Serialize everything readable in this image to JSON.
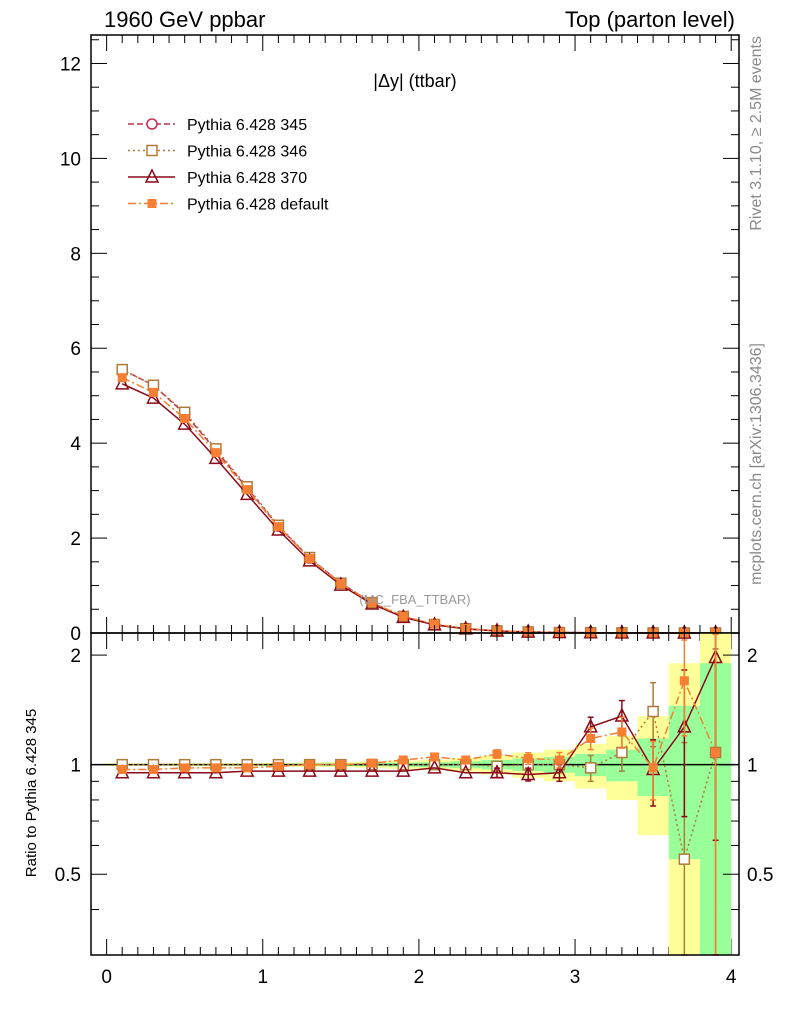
{
  "header": {
    "left_title": "1960 GeV ppbar",
    "right_title": "Top (parton level)"
  },
  "side_labels": {
    "rivet": "Rivet 3.1.10, ≥ 2.5M events",
    "mcplots": "mcplots.cern.ch [arXiv:1306.3436]"
  },
  "chart_data": [
    {
      "type": "line",
      "title": "|Δy| (ttbar)",
      "watermark": "(MC_FBA_TTBAR)",
      "xlabel": "",
      "ylabel": "",
      "xlim": [
        -0.1,
        4.05
      ],
      "ylim": [
        0,
        12.6
      ],
      "ytick_labels": [
        "0",
        "2",
        "4",
        "6",
        "8",
        "10",
        "12"
      ],
      "legend": "top-left",
      "x": [
        0.1,
        0.3,
        0.5,
        0.7,
        0.9,
        1.1,
        1.3,
        1.5,
        1.7,
        1.9,
        2.1,
        2.3,
        2.5,
        2.7,
        2.9,
        3.1,
        3.3,
        3.5,
        3.7,
        3.9
      ],
      "series": [
        {
          "name": "Pythia 6.428 345",
          "color": "#c0304a",
          "marker": "circle",
          "values": [
            5.55,
            5.22,
            4.62,
            3.85,
            3.05,
            2.25,
            1.58,
            1.05,
            0.63,
            0.34,
            0.18,
            0.09,
            0.045,
            0.022,
            0.01,
            0.006,
            0.003,
            0.0015,
            0.0008,
            0.0004
          ]
        },
        {
          "name": "Pythia 6.428 346",
          "color": "#b07a3a",
          "marker": "open-square",
          "values": [
            5.55,
            5.22,
            4.65,
            3.88,
            3.08,
            2.27,
            1.59,
            1.05,
            0.64,
            0.35,
            0.18,
            0.09,
            0.045,
            0.022,
            0.01,
            0.006,
            0.003,
            0.0015,
            0.0008,
            0.0004
          ]
        },
        {
          "name": "Pythia 6.428 370",
          "color": "#8b0a1a",
          "marker": "open-triangle",
          "values": [
            5.25,
            4.95,
            4.4,
            3.68,
            2.92,
            2.17,
            1.52,
            1.01,
            0.61,
            0.33,
            0.17,
            0.087,
            0.043,
            0.021,
            0.01,
            0.006,
            0.003,
            0.0015,
            0.0008,
            0.0004
          ]
        },
        {
          "name": "Pythia 6.428 default",
          "color": "#f77f33",
          "marker": "filled-square",
          "values": [
            5.38,
            5.07,
            4.52,
            3.8,
            3.02,
            2.24,
            1.57,
            1.04,
            0.64,
            0.35,
            0.19,
            0.095,
            0.048,
            0.023,
            0.01,
            0.006,
            0.003,
            0.0015,
            0.0008,
            0.0004
          ]
        }
      ]
    },
    {
      "type": "line",
      "ylabel": "Ratio to Pythia 6.428 345",
      "xlim": [
        -0.1,
        4.05
      ],
      "ylim": [
        0.3,
        2.3
      ],
      "xtick_labels": [
        "0",
        "1",
        "2",
        "3",
        "4"
      ],
      "ytick_labels": [
        "0.5",
        "1",
        "2"
      ],
      "x": [
        0.1,
        0.3,
        0.5,
        0.7,
        0.9,
        1.1,
        1.3,
        1.5,
        1.7,
        1.9,
        2.1,
        2.3,
        2.5,
        2.7,
        2.9,
        3.1,
        3.3,
        3.5,
        3.7,
        3.9
      ],
      "bands": {
        "green_half_width": [
          0.004,
          0.004,
          0.004,
          0.005,
          0.005,
          0.006,
          0.007,
          0.008,
          0.01,
          0.013,
          0.016,
          0.022,
          0.03,
          0.04,
          0.05,
          0.07,
          0.1,
          0.18,
          0.45,
          0.9
        ],
        "yellow_half_width": [
          0.008,
          0.008,
          0.009,
          0.01,
          0.01,
          0.012,
          0.014,
          0.016,
          0.02,
          0.026,
          0.032,
          0.044,
          0.06,
          0.08,
          0.1,
          0.14,
          0.2,
          0.36,
          0.9,
          1.8
        ]
      },
      "series": [
        {
          "name": "Pythia 6.428 346",
          "color": "#b07a3a",
          "marker": "open-square",
          "values": [
            1.0,
            1.0,
            1.0,
            1.0,
            1.0,
            1.0,
            1.0,
            1.0,
            1.0,
            1.0,
            1.0,
            1.0,
            0.99,
            1.0,
            1.0,
            0.98,
            1.08,
            1.4,
            0.55,
            1.08
          ],
          "errors": [
            0.003,
            0.003,
            0.003,
            0.004,
            0.004,
            0.005,
            0.006,
            0.007,
            0.009,
            0.011,
            0.014,
            0.02,
            0.028,
            0.038,
            0.05,
            0.08,
            0.12,
            0.28,
            0.6,
            1.0
          ]
        },
        {
          "name": "Pythia 6.428 370",
          "color": "#8b0a1a",
          "marker": "open-triangle",
          "values": [
            0.95,
            0.95,
            0.95,
            0.95,
            0.96,
            0.96,
            0.96,
            0.96,
            0.96,
            0.96,
            0.98,
            0.95,
            0.95,
            0.94,
            0.95,
            1.27,
            1.36,
            0.97,
            1.27,
            1.97
          ],
          "errors": [
            0.003,
            0.003,
            0.003,
            0.004,
            0.004,
            0.005,
            0.006,
            0.007,
            0.009,
            0.011,
            0.014,
            0.02,
            0.028,
            0.038,
            0.05,
            0.08,
            0.14,
            0.2,
            0.55,
            1.35
          ]
        },
        {
          "name": "Pythia 6.428 default",
          "color": "#f77f33",
          "marker": "filled-square",
          "values": [
            0.97,
            0.97,
            0.98,
            0.98,
            0.98,
            0.99,
            1.0,
            1.0,
            1.01,
            1.03,
            1.05,
            1.03,
            1.07,
            1.04,
            1.03,
            1.18,
            1.23,
            0.98,
            1.7,
            1.08
          ],
          "errors": [
            0.003,
            0.003,
            0.003,
            0.004,
            0.004,
            0.005,
            0.006,
            0.007,
            0.009,
            0.011,
            0.014,
            0.02,
            0.028,
            0.038,
            0.05,
            0.08,
            0.12,
            0.18,
            0.5,
            1.2
          ]
        }
      ]
    }
  ]
}
